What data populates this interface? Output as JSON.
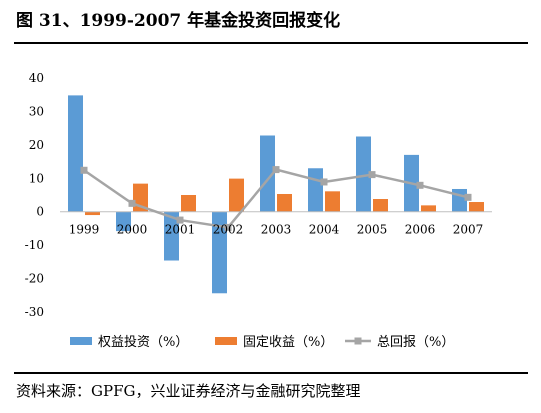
{
  "figure_title": "图 31、1999-2007 年基金投资回报变化",
  "source_note": "资料来源：GPFG，兴业证券经济与金融研究院整理",
  "colors": {
    "equity": "#5b9bd5",
    "fixed_income": "#ed7d31",
    "total": "#a5a5a5",
    "axis": "#bfbfbf",
    "text": "#000000"
  },
  "chart_data": {
    "type": "bar",
    "categories": [
      "1999",
      "2000",
      "2001",
      "2002",
      "2003",
      "2004",
      "2005",
      "2006",
      "2007"
    ],
    "series": [
      {
        "name": "权益投资（%）",
        "type": "bar",
        "values": [
          34.8,
          -5.8,
          -14.6,
          -24.4,
          22.8,
          13.0,
          22.5,
          17.0,
          6.8
        ]
      },
      {
        "name": "固定收益（%）",
        "type": "bar",
        "values": [
          -1.0,
          8.4,
          5.0,
          9.9,
          5.3,
          6.1,
          3.8,
          1.9,
          2.9
        ]
      },
      {
        "name": "总回报（%）",
        "type": "line",
        "values": [
          12.4,
          2.5,
          -2.5,
          -4.7,
          12.6,
          8.9,
          11.1,
          7.9,
          4.3
        ]
      }
    ],
    "ylim": [
      -30,
      40
    ],
    "yticks": [
      -30,
      -20,
      -10,
      0,
      10,
      20,
      30,
      40
    ],
    "ytick_labels": [
      "-30",
      "-20",
      "-10",
      "0",
      "10",
      "20",
      "30",
      "40"
    ],
    "grid": false,
    "legend_position": "bottom",
    "xlabel": "",
    "ylabel": ""
  }
}
